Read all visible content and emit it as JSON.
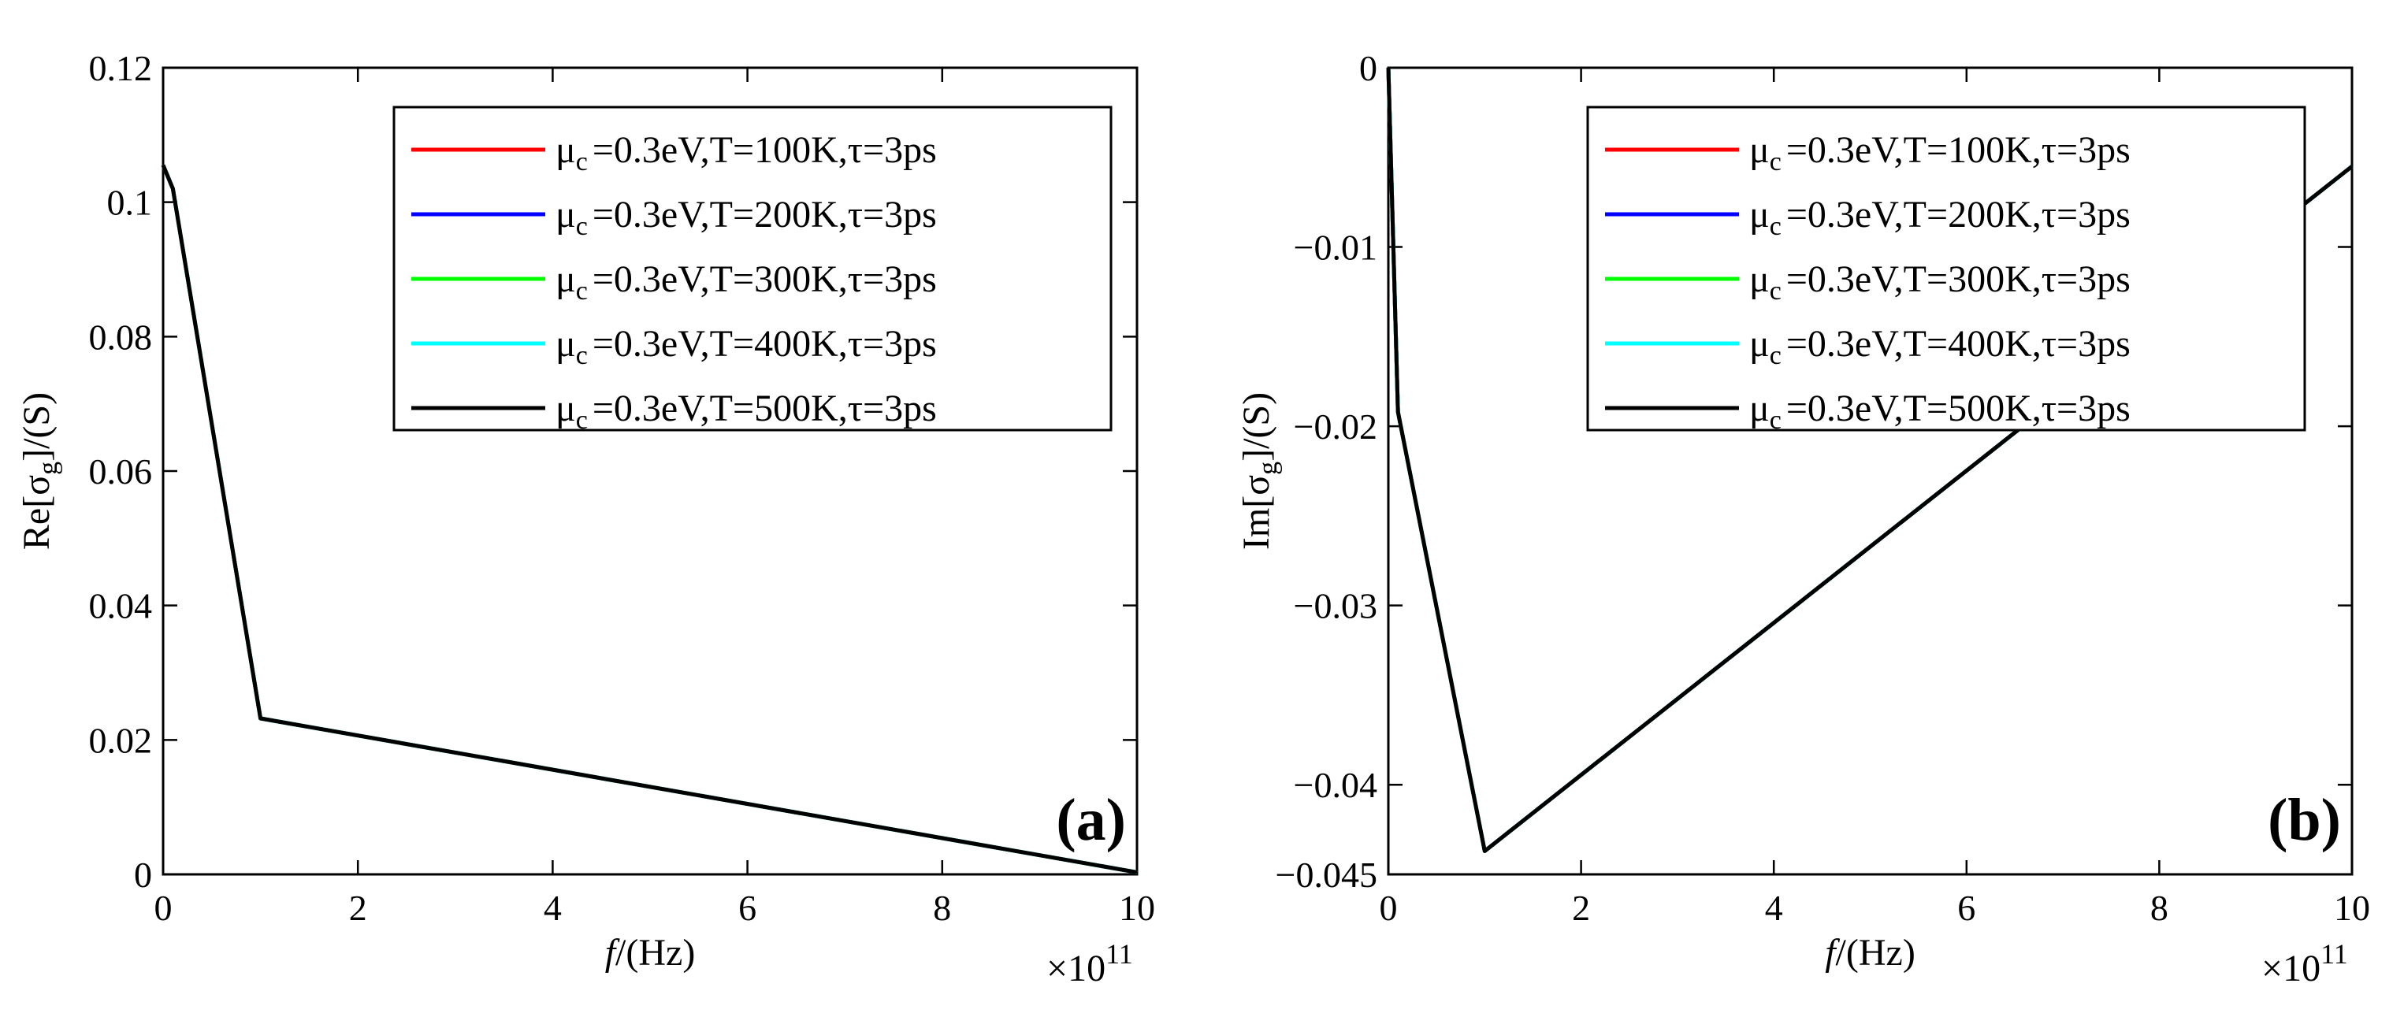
{
  "chart_data": [
    {
      "type": "line",
      "panel_label": "(a)",
      "ylabel_prefix": "Re[σ",
      "ylabel_sub": "g",
      "ylabel_suffix": "]/(S)",
      "xlabel_italic": "f",
      "xlabel_rest": "/(Hz)",
      "x_multiplier_base": "×10",
      "x_multiplier_exp": "11",
      "xlim": [
        0,
        10
      ],
      "ylim": [
        0,
        0.12
      ],
      "xticks": [
        0,
        2,
        4,
        6,
        8,
        10
      ],
      "xtick_labels": [
        "0",
        "2",
        "4",
        "6",
        "8",
        "10"
      ],
      "yticks": [
        0,
        0.02,
        0.04,
        0.06,
        0.08,
        0.1,
        0.12
      ],
      "ytick_labels": [
        "0",
        "0.02",
        "0.04",
        "0.06",
        "0.08",
        "0.1",
        "0.12"
      ],
      "legend_position": "top-right",
      "series": [
        {
          "name": "T=100K",
          "mu_sym": "μ",
          "mu_sub": "c",
          "label": "=0.3eV,T=100K,τ=3ps",
          "color": "#ff0000",
          "x": [
            0,
            0.1,
            1,
            10
          ],
          "y": [
            0.1055,
            0.102,
            0.0232,
            0.0003
          ]
        },
        {
          "name": "T=200K",
          "mu_sym": "μ",
          "mu_sub": "c",
          "label": "=0.3eV,T=200K,τ=3ps",
          "color": "#0000ff",
          "x": [
            0,
            0.1,
            1,
            10
          ],
          "y": [
            0.1055,
            0.102,
            0.0232,
            0.0003
          ]
        },
        {
          "name": "T=300K",
          "mu_sym": "μ",
          "mu_sub": "c",
          "label": "=0.3eV,T=300K,τ=3ps",
          "color": "#00ff00",
          "x": [
            0,
            0.1,
            1,
            10
          ],
          "y": [
            0.1055,
            0.102,
            0.0232,
            0.0003
          ]
        },
        {
          "name": "T=400K",
          "mu_sym": "μ",
          "mu_sub": "c",
          "label": "=0.3eV,T=400K,τ=3ps",
          "color": "#00ffff",
          "x": [
            0,
            0.1,
            1,
            10
          ],
          "y": [
            0.1055,
            0.102,
            0.0232,
            0.0003
          ]
        },
        {
          "name": "T=500K",
          "mu_sym": "μ",
          "mu_sub": "c",
          "label": "=0.3eV,T=500K,τ=3ps",
          "color": "#000000",
          "x": [
            0,
            0.1,
            1,
            10
          ],
          "y": [
            0.1055,
            0.102,
            0.0232,
            0.0003
          ]
        }
      ]
    },
    {
      "type": "line",
      "panel_label": "(b)",
      "ylabel_prefix": "Im[σ",
      "ylabel_sub": "g",
      "ylabel_suffix": "]/(S)",
      "xlabel_italic": "f",
      "xlabel_rest": "/(Hz)",
      "x_multiplier_base": "×10",
      "x_multiplier_exp": "11",
      "xlim": [
        0,
        10
      ],
      "ylim": [
        -0.045,
        0
      ],
      "xticks": [
        0,
        2,
        4,
        6,
        8,
        10
      ],
      "xtick_labels": [
        "0",
        "2",
        "4",
        "6",
        "8",
        "10"
      ],
      "yticks": [
        0,
        -0.01,
        -0.02,
        -0.03,
        -0.04,
        -0.045
      ],
      "ytick_labels": [
        "0",
        "−0.01",
        "−0.02",
        "−0.03",
        "−0.04",
        "−0.045"
      ],
      "legend_position": "top-right",
      "series": [
        {
          "name": "T=100K",
          "mu_sym": "μ",
          "mu_sub": "c",
          "label": "=0.3eV,T=100K,τ=3ps",
          "color": "#ff0000",
          "x": [
            0,
            0.1,
            1,
            10
          ],
          "y": [
            0,
            -0.0192,
            -0.0437,
            -0.0055
          ]
        },
        {
          "name": "T=200K",
          "mu_sym": "μ",
          "mu_sub": "c",
          "label": "=0.3eV,T=200K,τ=3ps",
          "color": "#0000ff",
          "x": [
            0,
            0.1,
            1,
            10
          ],
          "y": [
            0,
            -0.0192,
            -0.0437,
            -0.0055
          ]
        },
        {
          "name": "T=300K",
          "mu_sym": "μ",
          "mu_sub": "c",
          "label": "=0.3eV,T=300K,τ=3ps",
          "color": "#00ff00",
          "x": [
            0,
            0.1,
            1,
            10
          ],
          "y": [
            0,
            -0.0192,
            -0.0437,
            -0.0055
          ]
        },
        {
          "name": "T=400K",
          "mu_sym": "μ",
          "mu_sub": "c",
          "label": "=0.3eV,T=400K,τ=3ps",
          "color": "#00ffff",
          "x": [
            0,
            0.1,
            1,
            10
          ],
          "y": [
            0,
            -0.0192,
            -0.0437,
            -0.0055
          ]
        },
        {
          "name": "T=500K",
          "mu_sym": "μ",
          "mu_sub": "c",
          "label": "=0.3eV,T=500K,τ=3ps",
          "color": "#000000",
          "x": [
            0,
            0.1,
            1,
            10
          ],
          "y": [
            0,
            -0.0192,
            -0.0437,
            -0.0055
          ]
        }
      ]
    }
  ]
}
